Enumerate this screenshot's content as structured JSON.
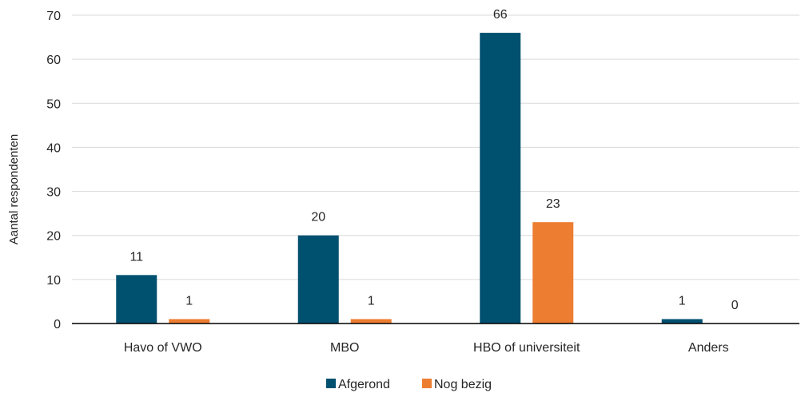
{
  "chart_data": {
    "type": "bar",
    "title": "",
    "xlabel": "",
    "ylabel": "Aantal respondenten",
    "ylim": [
      0,
      70
    ],
    "yticks": [
      0,
      10,
      20,
      30,
      40,
      50,
      60,
      70
    ],
    "grid": true,
    "legend_position": "bottom",
    "categories": [
      "Havo of VWO",
      "MBO",
      "HBO of universiteit",
      "Anders"
    ],
    "series": [
      {
        "name": "Afgerond",
        "color": "#00506f",
        "values": [
          11,
          20,
          66,
          1
        ]
      },
      {
        "name": "Nog bezig",
        "color": "#ed7d31",
        "values": [
          1,
          1,
          23,
          0
        ]
      }
    ]
  }
}
